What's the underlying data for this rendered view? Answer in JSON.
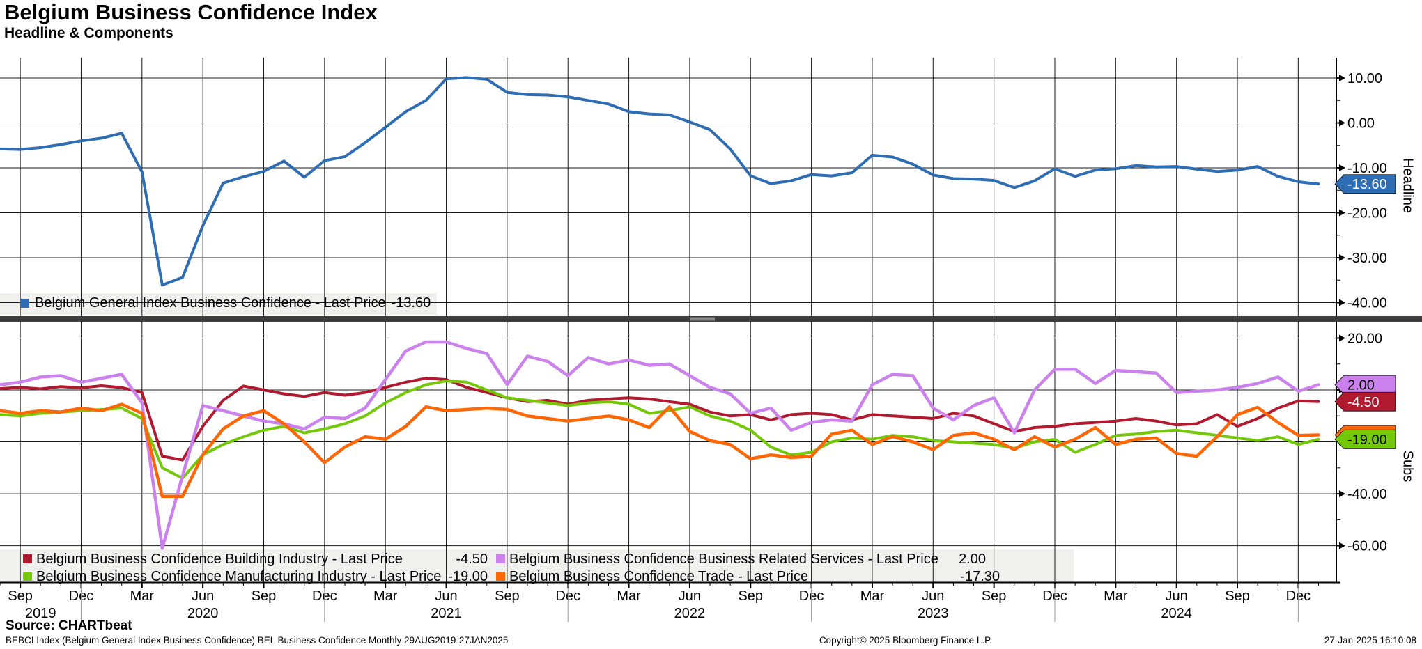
{
  "header": {
    "title": "Belgium Business Confidence Index",
    "subtitle": "Headline & Components"
  },
  "colors": {
    "headline": "#2e6db4",
    "building": "#b11a2e",
    "manufacturing": "#74c80a",
    "services": "#cc82ed",
    "trade": "#ff6606",
    "grid": "#1a1a1a",
    "separator": "#3d3d3d",
    "separator_handle": "#8a8a8a",
    "legend_bg": "#f0f0ef",
    "year_divider": "#9a9a9a"
  },
  "top_panel": {
    "axis_title": "Headline",
    "y_tick_values": [
      10,
      0,
      -10,
      -20,
      -30,
      -40
    ],
    "y_minor_values": [
      5,
      -5,
      -15,
      -25,
      -35
    ],
    "badge": {
      "value": "-13.60",
      "bg": "#2e6db4",
      "fg": "#ffffff"
    },
    "legend": {
      "label": "Belgium General Index Business Confidence - Last Price",
      "value": "-13.60"
    }
  },
  "bottom_panel": {
    "axis_title": "Subs",
    "y_tick_values": [
      20,
      0,
      -20,
      -40,
      -60
    ],
    "y_minor_values": [
      10,
      -10,
      -30,
      -50
    ],
    "badges": [
      {
        "value": "-17.30",
        "bg": "#ff6606",
        "fg": "#000000",
        "at": -17.3,
        "show_text": false
      },
      {
        "value": "2.00",
        "bg": "#cc82ed",
        "fg": "#000000",
        "at": 2.0,
        "show_text": true
      },
      {
        "value": "-4.50",
        "bg": "#b11a2e",
        "fg": "#ffffff",
        "at": -4.5,
        "show_text": true
      },
      {
        "value": "-19.00",
        "bg": "#74c80a",
        "fg": "#000000",
        "at": -19.0,
        "show_text": true
      }
    ],
    "legend": [
      {
        "label": "Belgium Business Confidence Building Industry - Last Price",
        "value": "-4.50",
        "color": "#b11a2e"
      },
      {
        "label": "Belgium Business Confidence Business Related Services - Last Price",
        "value": "2.00",
        "color": "#cc82ed"
      },
      {
        "label": "Belgium Business Confidence Manufacturing Industry - Last Price",
        "value": "-19.00",
        "color": "#74c80a"
      },
      {
        "label": "Belgium Business Confidence Trade - Last Price",
        "value": "-17.30",
        "color": "#ff6606"
      }
    ]
  },
  "x_axis": {
    "start": "2019-08",
    "interval": "monthly",
    "points": 66,
    "month_ticks": [
      {
        "i": 1,
        "l": "Sep"
      },
      {
        "i": 4,
        "l": "Dec"
      },
      {
        "i": 7,
        "l": "Mar"
      },
      {
        "i": 10,
        "l": "Jun"
      },
      {
        "i": 13,
        "l": "Sep"
      },
      {
        "i": 16,
        "l": "Dec"
      },
      {
        "i": 19,
        "l": "Mar"
      },
      {
        "i": 22,
        "l": "Jun"
      },
      {
        "i": 25,
        "l": "Sep"
      },
      {
        "i": 28,
        "l": "Dec"
      },
      {
        "i": 31,
        "l": "Mar"
      },
      {
        "i": 34,
        "l": "Jun"
      },
      {
        "i": 37,
        "l": "Sep"
      },
      {
        "i": 40,
        "l": "Dec"
      },
      {
        "i": 43,
        "l": "Mar"
      },
      {
        "i": 46,
        "l": "Jun"
      },
      {
        "i": 49,
        "l": "Sep"
      },
      {
        "i": 52,
        "l": "Dec"
      },
      {
        "i": 55,
        "l": "Mar"
      },
      {
        "i": 58,
        "l": "Jun"
      },
      {
        "i": 61,
        "l": "Sep"
      },
      {
        "i": 64,
        "l": "Dec"
      }
    ],
    "years": [
      {
        "label": "2019",
        "a": 0,
        "b": 4
      },
      {
        "label": "2020",
        "a": 4,
        "b": 16
      },
      {
        "label": "2021",
        "a": 16,
        "b": 28
      },
      {
        "label": "2022",
        "a": 28,
        "b": 40
      },
      {
        "label": "2023",
        "a": 40,
        "b": 52
      },
      {
        "label": "2024",
        "a": 52,
        "b": 64
      }
    ],
    "year_divider_indices": [
      4,
      16,
      28,
      40,
      52,
      64
    ]
  },
  "footer": {
    "source": "Source: CHARTbeat",
    "description": "BEBCI Index (Belgium General Index Business Confidence) BEL Business Confidence  Monthly 29AUG2019-27JAN2025",
    "copyright": "Copyright© 2025 Bloomberg Finance L.P.",
    "timestamp": "27-Jan-2025 16:10:08"
  },
  "chart_data": [
    {
      "type": "line",
      "title": "Headline",
      "ylim": [
        -44,
        14.5
      ],
      "y_ticks": [
        10,
        0,
        -10,
        -20,
        -30,
        -40
      ],
      "x_range": "Aug 2019 - Jan 2025, monthly",
      "series": [
        {
          "name": "Belgium General Index Business Confidence",
          "last_price": -13.6,
          "color": "#2e6db4",
          "values": [
            -5.8,
            -5.9,
            -5.5,
            -4.8,
            -4.0,
            -3.4,
            -2.3,
            -10.9,
            -36.1,
            -34.4,
            -22.9,
            -13.4,
            -12.0,
            -10.8,
            -8.5,
            -12.1,
            -8.4,
            -7.5,
            -4.4,
            -1.0,
            2.5,
            5.0,
            9.8,
            10.1,
            9.7,
            6.8,
            6.3,
            6.2,
            5.8,
            5.0,
            4.2,
            2.5,
            2.0,
            1.8,
            0.2,
            -1.5,
            -5.8,
            -11.8,
            -13.5,
            -12.9,
            -11.5,
            -11.8,
            -11.1,
            -7.2,
            -7.6,
            -9.2,
            -11.6,
            -12.4,
            -12.5,
            -12.8,
            -14.4,
            -12.9,
            -10.2,
            -11.9,
            -10.5,
            -10.2,
            -9.5,
            -9.8,
            -9.7,
            -10.3,
            -10.8,
            -10.5,
            -9.7,
            -11.9,
            -13.1,
            -13.6
          ]
        }
      ]
    },
    {
      "type": "line",
      "title": "Subs",
      "ylim": [
        -74,
        25.5
      ],
      "y_ticks": [
        20,
        0,
        -20,
        -40,
        -60
      ],
      "x_range": "Aug 2019 - Jan 2025, monthly",
      "series": [
        {
          "name": "Belgium Business Confidence Building Industry",
          "last_price": -4.5,
          "color": "#b11a2e",
          "values": [
            0.5,
            1.0,
            0.4,
            1.3,
            0.8,
            1.6,
            0.9,
            -1.0,
            -25.5,
            -27.0,
            -14.0,
            -4.0,
            1.5,
            0.0,
            -1.5,
            -2.5,
            -1.0,
            -2.0,
            -1.0,
            1.0,
            3.0,
            4.5,
            4.0,
            1.0,
            -1.0,
            -3.0,
            -4.5,
            -4.0,
            -5.5,
            -4.0,
            -3.5,
            -3.0,
            -3.5,
            -4.5,
            -5.5,
            -8.5,
            -10.0,
            -9.5,
            -11.5,
            -9.5,
            -9.0,
            -9.5,
            -11.5,
            -9.5,
            -10.0,
            -10.5,
            -11.0,
            -9.0,
            -10.0,
            -13.0,
            -16.0,
            -14.5,
            -14.0,
            -13.0,
            -12.5,
            -12.0,
            -11.0,
            -12.0,
            -13.5,
            -13.0,
            -9.5,
            -14.0,
            -11.0,
            -7.0,
            -4.2,
            -4.5
          ]
        },
        {
          "name": "Belgium Business Confidence Manufacturing Industry",
          "last_price": -19.0,
          "color": "#74c80a",
          "values": [
            -9.5,
            -10.0,
            -9.0,
            -8.5,
            -8.0,
            -7.5,
            -7.0,
            -11.0,
            -30.0,
            -34.0,
            -25.0,
            -21.0,
            -18.0,
            -15.5,
            -14.0,
            -16.5,
            -15.0,
            -13.0,
            -10.0,
            -5.0,
            -1.0,
            2.0,
            3.5,
            3.0,
            0.0,
            -3.0,
            -4.0,
            -5.0,
            -6.0,
            -5.0,
            -4.5,
            -5.5,
            -9.0,
            -8.0,
            -6.5,
            -10.0,
            -12.0,
            -15.5,
            -22.0,
            -25.0,
            -24.0,
            -20.0,
            -18.5,
            -19.0,
            -17.5,
            -18.0,
            -19.5,
            -20.0,
            -20.5,
            -21.0,
            -22.5,
            -20.0,
            -19.0,
            -24.0,
            -21.0,
            -17.5,
            -17.0,
            -16.0,
            -15.5,
            -16.5,
            -17.5,
            -18.5,
            -19.5,
            -18.0,
            -21.0,
            -19.0
          ]
        },
        {
          "name": "Belgium Business Confidence Business Related Services",
          "last_price": 2.0,
          "color": "#cc82ed",
          "values": [
            2.0,
            3.0,
            5.0,
            5.5,
            3.0,
            4.5,
            6.0,
            -5.0,
            -61.0,
            -33.0,
            -6.0,
            -8.0,
            -10.0,
            -12.0,
            -13.0,
            -15.0,
            -10.5,
            -11.0,
            -7.0,
            4.0,
            15.0,
            18.5,
            18.5,
            16.0,
            14.0,
            2.0,
            13.0,
            11.0,
            5.5,
            12.5,
            10.0,
            11.5,
            9.5,
            10.0,
            5.5,
            1.0,
            -1.5,
            -9.0,
            -7.0,
            -15.5,
            -12.5,
            -11.5,
            -12.0,
            2.0,
            6.0,
            5.5,
            -7.0,
            -11.5,
            -6.0,
            -3.0,
            -16.5,
            0.0,
            8.0,
            8.0,
            2.5,
            7.5,
            7.0,
            6.5,
            -1.0,
            -0.5,
            0.0,
            1.0,
            2.5,
            5.0,
            -0.5,
            2.0
          ]
        },
        {
          "name": "Belgium Business Confidence Trade",
          "last_price": -17.3,
          "color": "#ff6606",
          "values": [
            -8.0,
            -9.0,
            -8.0,
            -8.5,
            -7.0,
            -8.0,
            -5.5,
            -9.0,
            -41.0,
            -41.0,
            -25.0,
            -15.0,
            -10.0,
            -8.0,
            -13.0,
            -20.0,
            -28.0,
            -22.0,
            -18.0,
            -19.0,
            -14.0,
            -6.5,
            -8.0,
            -7.5,
            -7.0,
            -7.5,
            -10.0,
            -11.0,
            -12.0,
            -11.0,
            -10.0,
            -11.5,
            -14.5,
            -6.5,
            -16.0,
            -19.5,
            -21.0,
            -26.5,
            -25.0,
            -26.0,
            -25.5,
            -17.0,
            -15.5,
            -21.0,
            -18.0,
            -20.0,
            -23.0,
            -17.5,
            -16.5,
            -19.0,
            -23.0,
            -18.0,
            -22.0,
            -19.0,
            -14.5,
            -21.0,
            -19.0,
            -18.5,
            -24.5,
            -25.5,
            -18.0,
            -9.5,
            -6.7,
            -12.5,
            -17.5,
            -17.3
          ]
        }
      ]
    }
  ]
}
